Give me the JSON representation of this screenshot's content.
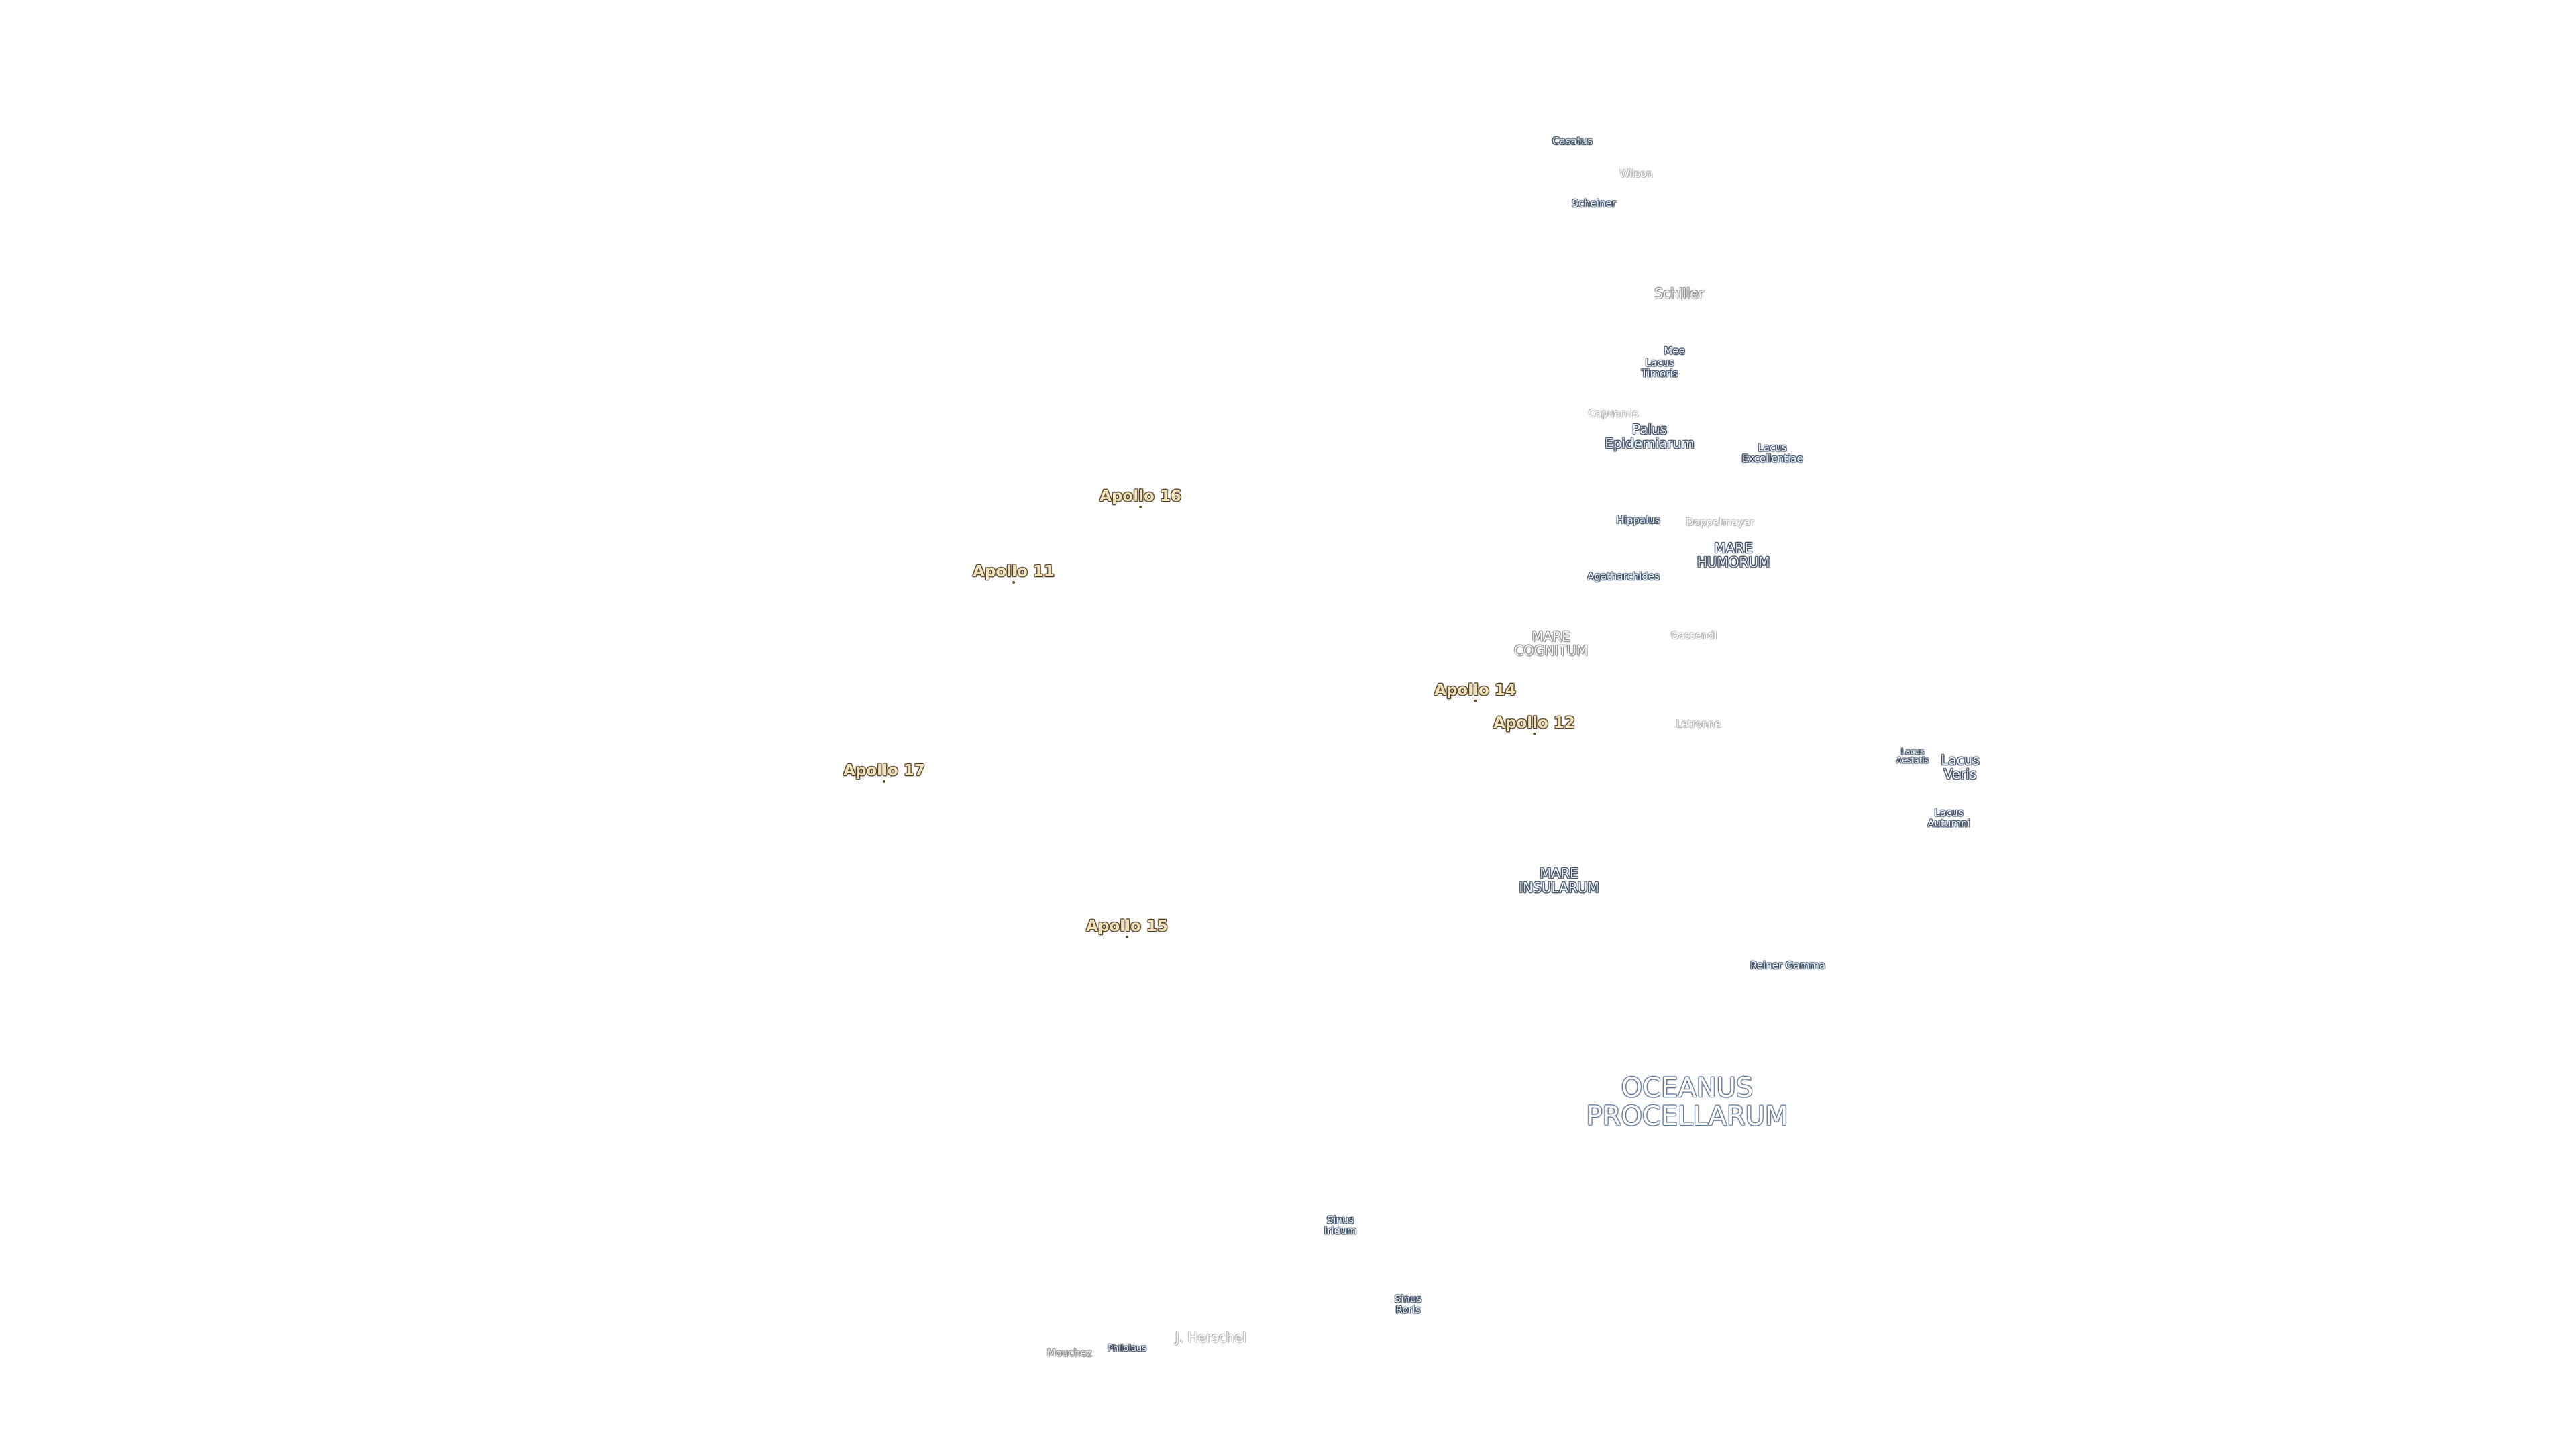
{
  "labels": [
    {
      "text": "Casatus"
    },
    {
      "text": "Wilson"
    },
    {
      "text": "Scheiner"
    },
    {
      "text": "Schiller"
    },
    {
      "text": "Mee"
    },
    {
      "text": "Lacus Timoris"
    },
    {
      "text": "Capuanus"
    },
    {
      "text": "Palus Epidemiarum"
    },
    {
      "text": "Lacus Excellentiae"
    },
    {
      "text": "Hippalus"
    },
    {
      "text": "Doppelmayer"
    },
    {
      "text": "MARE HUMORUM"
    },
    {
      "text": "Agatharchides"
    },
    {
      "text": "Gassendi"
    },
    {
      "text": "MARE COGNITUM"
    },
    {
      "text": "Apollo 16"
    },
    {
      "text": "Apollo 11"
    },
    {
      "text": "Apollo 14"
    },
    {
      "text": "Apollo 12"
    },
    {
      "text": "Letronne"
    },
    {
      "text": "Apollo 17"
    },
    {
      "text": "Lacus Aestatis"
    },
    {
      "text": "Lacus Veris"
    },
    {
      "text": "Lacus Autumni"
    },
    {
      "text": "MARE INSULARUM"
    },
    {
      "text": "Apollo 15"
    },
    {
      "text": "Reiner Gamma"
    },
    {
      "text": "OCEANUS PROCELLARUM"
    },
    {
      "text": "Sinus Iridum"
    },
    {
      "text": "Sinus Roris"
    },
    {
      "text": "J. Herschel"
    },
    {
      "text": "Philolaus"
    },
    {
      "text": "Mouchez"
    }
  ]
}
